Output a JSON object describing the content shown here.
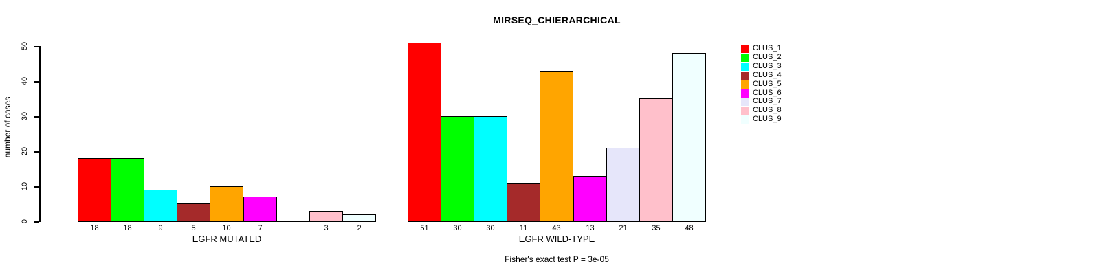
{
  "chart_data": {
    "type": "bar",
    "title": "MIRSEQ_CHIERARCHICAL",
    "ylabel": "number of cases",
    "ylim": [
      0,
      50
    ],
    "yticks": [
      0,
      10,
      20,
      30,
      40,
      50
    ],
    "grid": false,
    "legend_position": "right",
    "footnote": "Fisher's exact test P = 3e-05",
    "clusters": [
      {
        "name": "CLUS_1",
        "color": "#FF0000"
      },
      {
        "name": "CLUS_2",
        "color": "#00FF00"
      },
      {
        "name": "CLUS_3",
        "color": "#00FFFF"
      },
      {
        "name": "CLUS_4",
        "color": "#A52A2A"
      },
      {
        "name": "CLUS_5",
        "color": "#FFA500"
      },
      {
        "name": "CLUS_6",
        "color": "#FF00FF"
      },
      {
        "name": "CLUS_7",
        "color": "#E6E6FA"
      },
      {
        "name": "CLUS_8",
        "color": "#FFC0CB"
      },
      {
        "name": "CLUS_9",
        "color": "#F0FFFF"
      }
    ],
    "groups": [
      {
        "label": "EGFR MUTATED",
        "values": [
          18,
          18,
          9,
          5,
          10,
          7,
          null,
          3,
          2
        ]
      },
      {
        "label": "EGFR WILD-TYPE",
        "values": [
          51,
          30,
          30,
          11,
          43,
          13,
          21,
          35,
          48
        ]
      }
    ]
  }
}
